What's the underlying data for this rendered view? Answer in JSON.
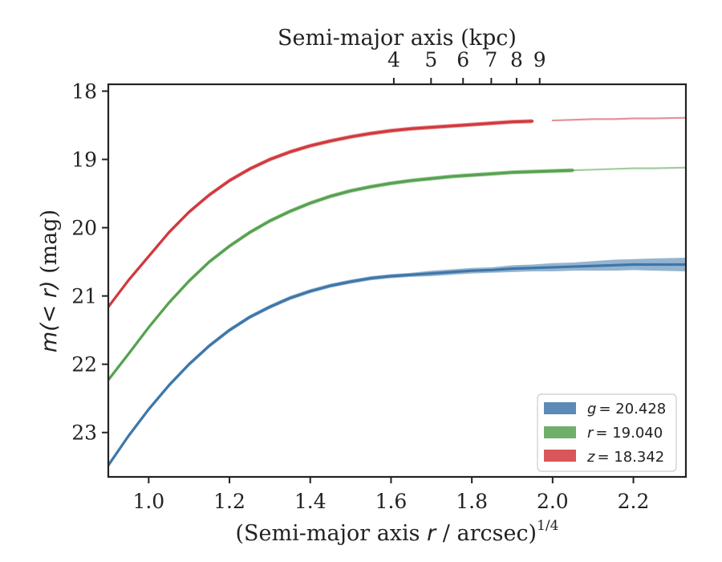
{
  "chart_data": {
    "type": "line",
    "title": "",
    "xlabel": {
      "prefix": "(Semi-major axis ",
      "var": "r",
      "suffix": " / arcsec)",
      "power": "1/4"
    },
    "ylabel": {
      "var": "m(< r)",
      "suffix": " (mag)"
    },
    "top_xlabel": "Semi-major axis (kpc)",
    "xlim": [
      0.9,
      2.33
    ],
    "ylim": [
      23.65,
      17.9
    ],
    "y_inverted": true,
    "xticks": [
      1.0,
      1.2,
      1.4,
      1.6,
      1.8,
      2.0,
      2.2
    ],
    "xtick_labels": [
      "1.0",
      "1.2",
      "1.4",
      "1.6",
      "1.8",
      "2.0",
      "2.2"
    ],
    "yticks": [
      18,
      19,
      20,
      21,
      22,
      23
    ],
    "ytick_labels": [
      "18",
      "19",
      "20",
      "21",
      "22",
      "23"
    ],
    "top_xticks": [
      4,
      5,
      6,
      7,
      8,
      9
    ],
    "top_xtick_labels": [
      "4",
      "5",
      "6",
      "7",
      "8",
      "9"
    ],
    "grid": false,
    "legend_position": "bottom-right",
    "series": [
      {
        "name": "g = 20.428",
        "var": "g",
        "value_label": "= 20.428",
        "color": "#3e77a9",
        "x": [
          0.9,
          0.95,
          1.0,
          1.05,
          1.1,
          1.15,
          1.2,
          1.25,
          1.3,
          1.35,
          1.4,
          1.45,
          1.5,
          1.55,
          1.6,
          1.65,
          1.7,
          1.75,
          1.8,
          1.85,
          1.9,
          1.95,
          2.0,
          2.05,
          2.1,
          2.15,
          2.2,
          2.25,
          2.33
        ],
        "y": [
          23.48,
          23.05,
          22.66,
          22.31,
          22.0,
          21.73,
          21.5,
          21.31,
          21.16,
          21.03,
          20.93,
          20.85,
          20.79,
          20.74,
          20.71,
          20.69,
          20.67,
          20.65,
          20.63,
          20.62,
          20.6,
          20.59,
          20.58,
          20.57,
          20.56,
          20.55,
          20.54,
          20.54,
          20.54
        ],
        "band_width": [
          0.03,
          0.03,
          0.03,
          0.03,
          0.03,
          0.03,
          0.03,
          0.03,
          0.03,
          0.03,
          0.03,
          0.03,
          0.03,
          0.03,
          0.03,
          0.03,
          0.04,
          0.04,
          0.04,
          0.04,
          0.05,
          0.05,
          0.06,
          0.06,
          0.07,
          0.08,
          0.08,
          0.09,
          0.1
        ],
        "extrapolated_from": null
      },
      {
        "name": "r = 19.040",
        "var": "r",
        "value_label": "= 19.040",
        "color": "#55a24f",
        "x": [
          0.9,
          0.95,
          1.0,
          1.05,
          1.1,
          1.15,
          1.2,
          1.25,
          1.3,
          1.35,
          1.4,
          1.45,
          1.5,
          1.55,
          1.6,
          1.65,
          1.7,
          1.75,
          1.8,
          1.85,
          1.9,
          1.95,
          2.0,
          2.05,
          2.1,
          2.15,
          2.2,
          2.25,
          2.33
        ],
        "y": [
          22.23,
          21.85,
          21.46,
          21.1,
          20.78,
          20.5,
          20.27,
          20.07,
          19.9,
          19.76,
          19.64,
          19.54,
          19.46,
          19.4,
          19.35,
          19.31,
          19.28,
          19.25,
          19.23,
          19.21,
          19.19,
          19.18,
          19.17,
          19.16,
          19.15,
          19.14,
          19.13,
          19.13,
          19.12
        ],
        "band_width": [
          0.03,
          0.03,
          0.03,
          0.03,
          0.03,
          0.03,
          0.03,
          0.03,
          0.03,
          0.03,
          0.03,
          0.03,
          0.03,
          0.03,
          0.03,
          0.03,
          0.03,
          0.03,
          0.03,
          0.03,
          0.03,
          0.03,
          0.03,
          0.03,
          0.0,
          0.0,
          0.0,
          0.0,
          0.0
        ],
        "extrapolated_from": 2.05
      },
      {
        "name": "z = 18.342",
        "var": "z",
        "value_label": "= 18.342",
        "color": "#d1393d",
        "x": [
          0.9,
          0.95,
          1.0,
          1.05,
          1.1,
          1.15,
          1.2,
          1.25,
          1.3,
          1.35,
          1.4,
          1.45,
          1.5,
          1.55,
          1.6,
          1.65,
          1.7,
          1.75,
          1.8,
          1.85,
          1.9,
          1.95,
          2.0,
          2.05,
          2.1,
          2.15,
          2.2,
          2.25,
          2.33
        ],
        "y": [
          21.16,
          20.77,
          20.42,
          20.07,
          19.77,
          19.52,
          19.31,
          19.14,
          19.0,
          18.89,
          18.8,
          18.73,
          18.67,
          18.62,
          18.58,
          18.55,
          18.53,
          18.51,
          18.49,
          18.47,
          18.45,
          18.44,
          18.43,
          18.42,
          18.41,
          18.41,
          18.4,
          18.4,
          18.39
        ],
        "band_width": [
          0.03,
          0.03,
          0.03,
          0.03,
          0.03,
          0.03,
          0.03,
          0.03,
          0.03,
          0.03,
          0.03,
          0.03,
          0.03,
          0.03,
          0.03,
          0.03,
          0.03,
          0.03,
          0.03,
          0.03,
          0.03,
          0.03,
          0.0,
          0.0,
          0.0,
          0.0,
          0.0,
          0.0,
          0.0
        ],
        "extrapolated_from": 1.98
      }
    ]
  }
}
